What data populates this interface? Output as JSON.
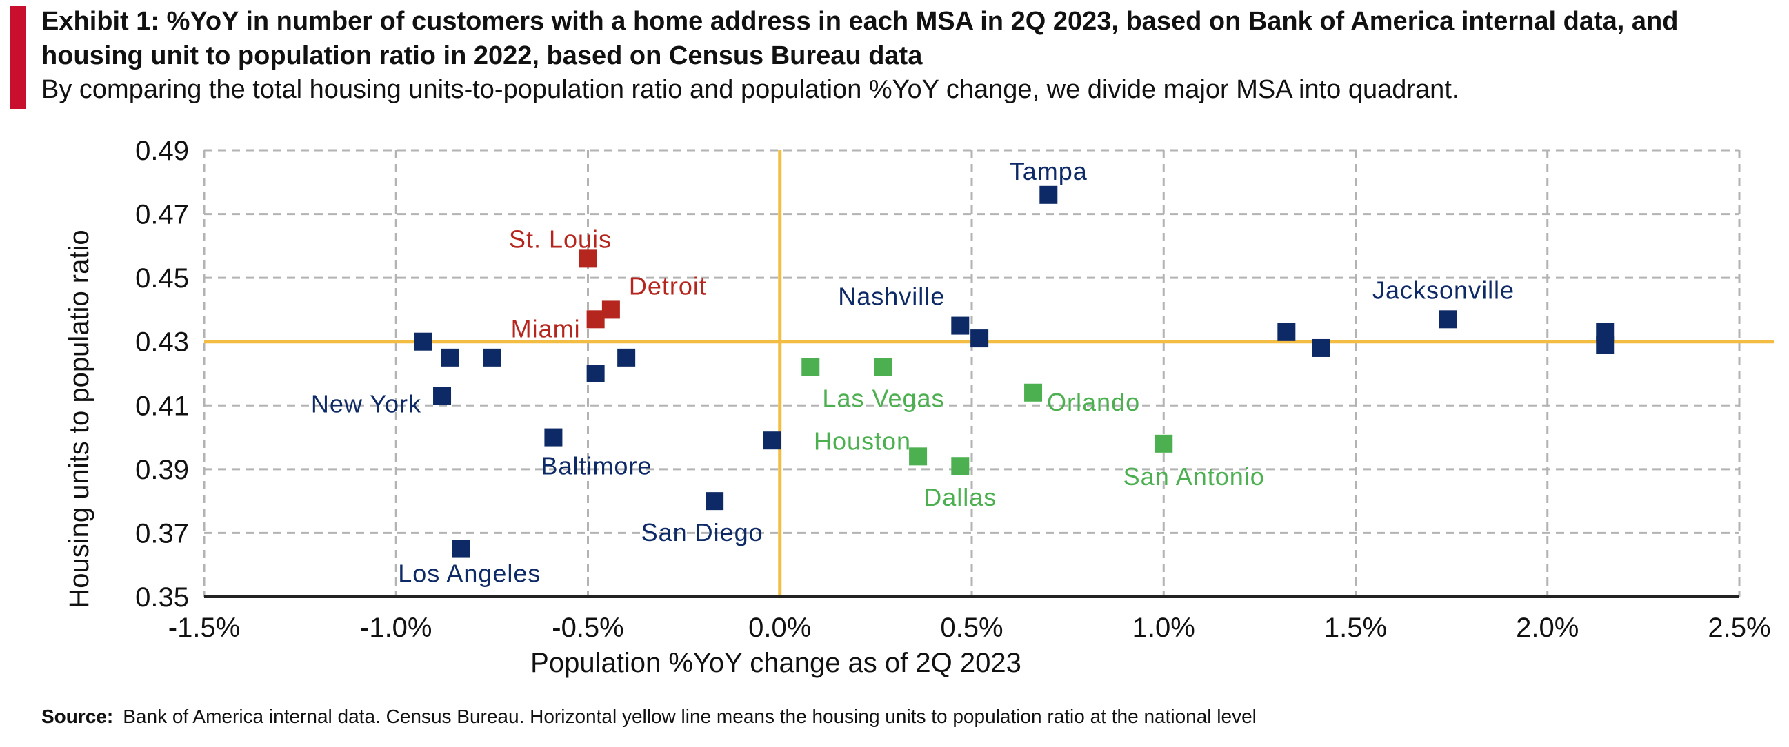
{
  "header": {
    "title": "Exhibit 1: %YoY in number of customers with a home address in each MSA in 2Q 2023, based on Bank of America internal data, and housing unit to population ratio  in 2022, based on Census Bureau data",
    "subtitle": "By comparing the total housing units-to-population ratio and population %YoY change, we divide major MSA into quadrant."
  },
  "footer": {
    "source_label": "Source:",
    "source_text": "Bank of America internal data. Census Bureau. Horizontal  yellow line means the housing  units to population  ratio at the national level"
  },
  "colors": {
    "navy": "#0e2a66",
    "red": "#b5261e",
    "green": "#4caf50",
    "reference": "#f2bd42",
    "grid": "#b3b3b3"
  },
  "chart_data": {
    "type": "scatter",
    "xlabel": "Population %YoY change as of 2Q 2023",
    "ylabel": "Housing units to populatio ratio",
    "xlim": [
      -1.5,
      2.5
    ],
    "ylim": [
      0.35,
      0.49
    ],
    "xticks": [
      -1.5,
      -1.0,
      -0.5,
      0.0,
      0.5,
      1.0,
      1.5,
      2.0,
      2.5
    ],
    "xtick_labels": [
      "-1.5%",
      "-1.0%",
      "-0.5%",
      "0.0%",
      "0.5%",
      "1.0%",
      "1.5%",
      "2.0%",
      "2.5%"
    ],
    "yticks": [
      0.35,
      0.37,
      0.39,
      0.41,
      0.43,
      0.45,
      0.47,
      0.49
    ],
    "ytick_labels": [
      "0.35",
      "0.37",
      "0.39",
      "0.41",
      "0.43",
      "0.45",
      "0.47",
      "0.49"
    ],
    "grid": true,
    "reference_lines": {
      "horizontal_y": 0.43,
      "vertical_x": 0.0
    },
    "points": [
      {
        "x": 0.7,
        "y": 0.476,
        "color": "navy",
        "label": "Tampa"
      },
      {
        "x": -0.5,
        "y": 0.456,
        "color": "red",
        "label": "St. Louis"
      },
      {
        "x": -0.44,
        "y": 0.44,
        "color": "red",
        "label": "Detroit"
      },
      {
        "x": -0.48,
        "y": 0.437,
        "color": "red",
        "label": "Miami"
      },
      {
        "x": 0.47,
        "y": 0.435,
        "color": "navy",
        "label": "Nashville"
      },
      {
        "x": 0.52,
        "y": 0.431,
        "color": "navy",
        "label": ""
      },
      {
        "x": 1.74,
        "y": 0.437,
        "color": "navy",
        "label": "Jacksonville"
      },
      {
        "x": 1.32,
        "y": 0.433,
        "color": "navy",
        "label": ""
      },
      {
        "x": 1.41,
        "y": 0.428,
        "color": "navy",
        "label": ""
      },
      {
        "x": 2.15,
        "y": 0.433,
        "color": "navy",
        "label": ""
      },
      {
        "x": 2.15,
        "y": 0.429,
        "color": "navy",
        "label": ""
      },
      {
        "x": -0.93,
        "y": 0.43,
        "color": "navy",
        "label": ""
      },
      {
        "x": -0.86,
        "y": 0.425,
        "color": "navy",
        "label": ""
      },
      {
        "x": -0.75,
        "y": 0.425,
        "color": "navy",
        "label": ""
      },
      {
        "x": -0.4,
        "y": 0.425,
        "color": "navy",
        "label": ""
      },
      {
        "x": -0.48,
        "y": 0.42,
        "color": "navy",
        "label": ""
      },
      {
        "x": -0.88,
        "y": 0.413,
        "color": "navy",
        "label": "New York"
      },
      {
        "x": -0.59,
        "y": 0.4,
        "color": "navy",
        "label": "Baltimore"
      },
      {
        "x": -0.02,
        "y": 0.399,
        "color": "navy",
        "label": ""
      },
      {
        "x": -0.17,
        "y": 0.38,
        "color": "navy",
        "label": "San Diego"
      },
      {
        "x": -0.83,
        "y": 0.365,
        "color": "navy",
        "label": "Los Angeles"
      },
      {
        "x": 0.08,
        "y": 0.422,
        "color": "green",
        "label": ""
      },
      {
        "x": 0.27,
        "y": 0.422,
        "color": "green",
        "label": "Las Vegas"
      },
      {
        "x": 0.66,
        "y": 0.414,
        "color": "green",
        "label": "Orlando"
      },
      {
        "x": 0.36,
        "y": 0.394,
        "color": "green",
        "label": "Houston"
      },
      {
        "x": 0.47,
        "y": 0.391,
        "color": "green",
        "label": "Dallas"
      },
      {
        "x": 1.0,
        "y": 0.398,
        "color": "green",
        "label": "San Antonio"
      }
    ]
  }
}
